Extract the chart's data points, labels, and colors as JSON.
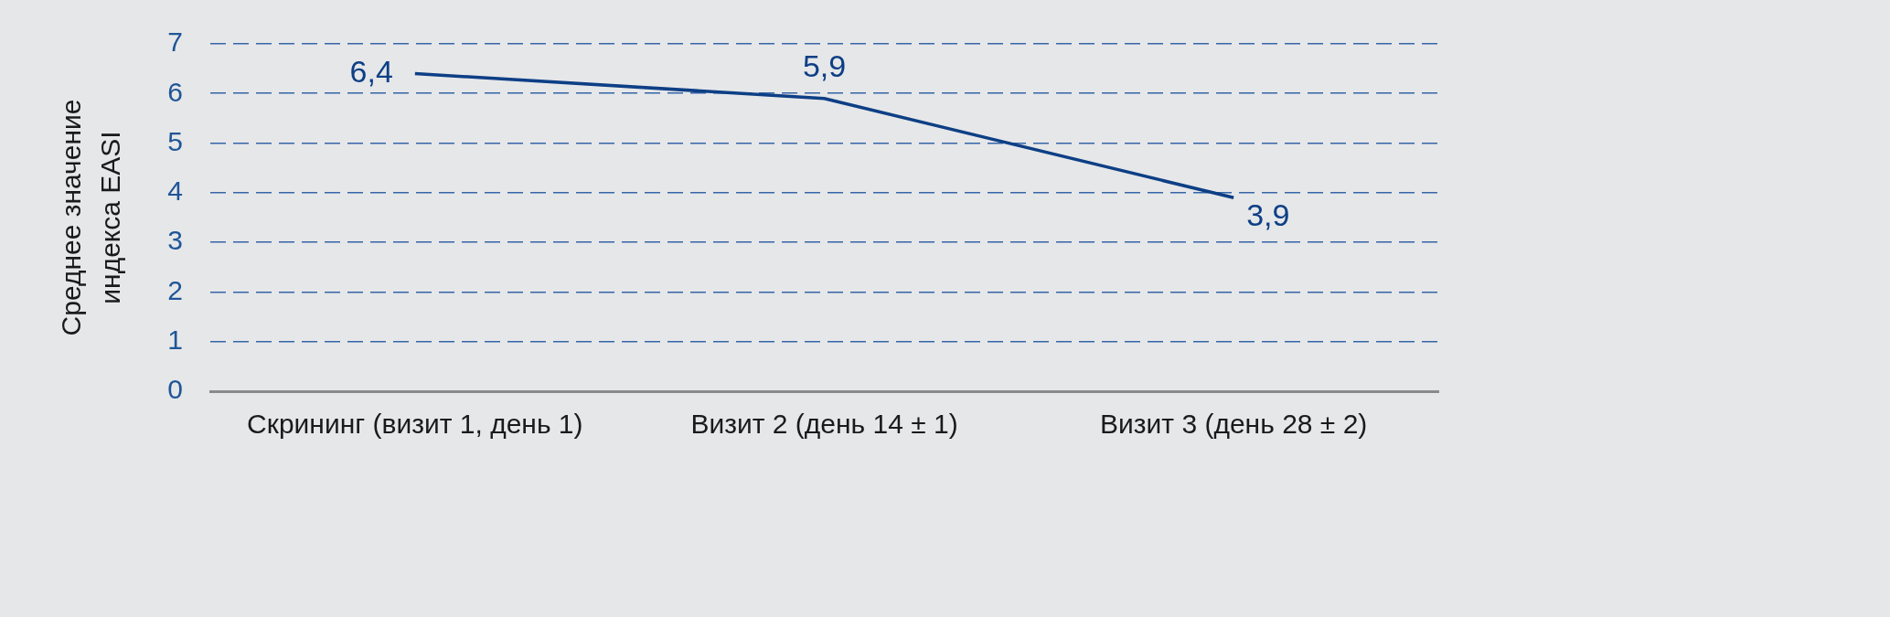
{
  "chart_data": {
    "type": "line",
    "categories": [
      "Скрининг (визит 1, день 1)",
      "Визит 2 (день 14 ± 1)",
      "Визит 3 (день 28 ± 2)"
    ],
    "series": [
      {
        "color": "#0d3f85",
        "values": [
          6.4,
          5.9,
          3.9
        ],
        "value_labels": [
          "6,4",
          "5,9",
          "3,9"
        ]
      }
    ],
    "ylabel": "Среднее значение\nиндекса EASI",
    "ylim": [
      0,
      7
    ],
    "yticks": [
      0,
      1,
      2,
      3,
      4,
      5,
      6,
      7
    ],
    "grid": "y",
    "marker": "none",
    "line_style": "solid"
  }
}
